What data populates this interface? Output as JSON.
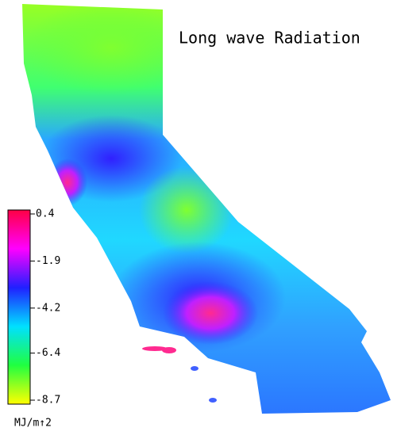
{
  "title": "Long wave Radiation",
  "colorbar": {
    "range": [
      -8.7,
      0.4
    ],
    "ticks": [
      0.4,
      -1.9,
      -4.2,
      -6.4,
      -8.7
    ],
    "unit": "MJ/m↑2",
    "colors": [
      "#ff0044",
      "#ff00ff",
      "#2020ff",
      "#00e0ff",
      "#20ff40",
      "#ffff00"
    ]
  }
}
